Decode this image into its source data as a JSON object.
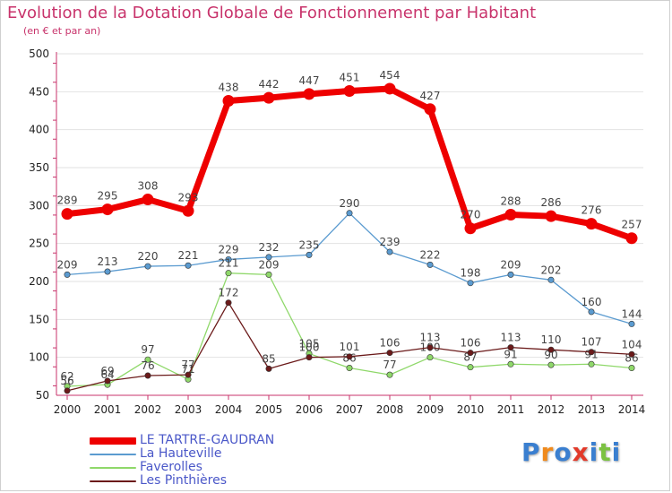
{
  "title": "Evolution de la Dotation Globale de Fonctionnement par Habitant",
  "subtitle": "(en € et par an)",
  "brand": {
    "text": "Proxiti"
  },
  "colors": {
    "title": "#c8336b",
    "axis": "#c8336b",
    "grid": "#e2e2e2",
    "tick_text": "#222222",
    "value_text": "#444444",
    "legend_text": "#4a57c8"
  },
  "chart_data": {
    "type": "line",
    "x": [
      "2000",
      "2001",
      "2002",
      "2003",
      "2004",
      "2005",
      "2006",
      "2007",
      "2008",
      "2009",
      "2010",
      "2011",
      "2012",
      "2013",
      "2014"
    ],
    "ylim": [
      50,
      500
    ],
    "yticks": [
      50,
      100,
      150,
      200,
      250,
      300,
      350,
      400,
      450,
      500
    ],
    "grid": true,
    "legend_position": "bottom-left",
    "series": [
      {
        "name": "LE TARTRE-GAUDRAN",
        "color": "#ee0000",
        "emphasis": true,
        "values": [
          289,
          295,
          308,
          293,
          438,
          442,
          447,
          451,
          454,
          427,
          270,
          288,
          286,
          276,
          257
        ]
      },
      {
        "name": "La Hauteville",
        "color": "#5b9bd0",
        "values": [
          209,
          213,
          220,
          221,
          229,
          232,
          235,
          290,
          239,
          222,
          198,
          209,
          202,
          160,
          144
        ]
      },
      {
        "name": "Faverolles",
        "color": "#8fd86a",
        "values": [
          62,
          64,
          97,
          71,
          211,
          209,
          105,
          86,
          77,
          100,
          87,
          91,
          90,
          91,
          86
        ]
      },
      {
        "name": "Les Pinthières",
        "color": "#6b1a1a",
        "values": [
          56,
          69,
          76,
          77,
          172,
          85,
          100,
          101,
          106,
          113,
          106,
          113,
          110,
          107,
          104
        ]
      }
    ]
  }
}
